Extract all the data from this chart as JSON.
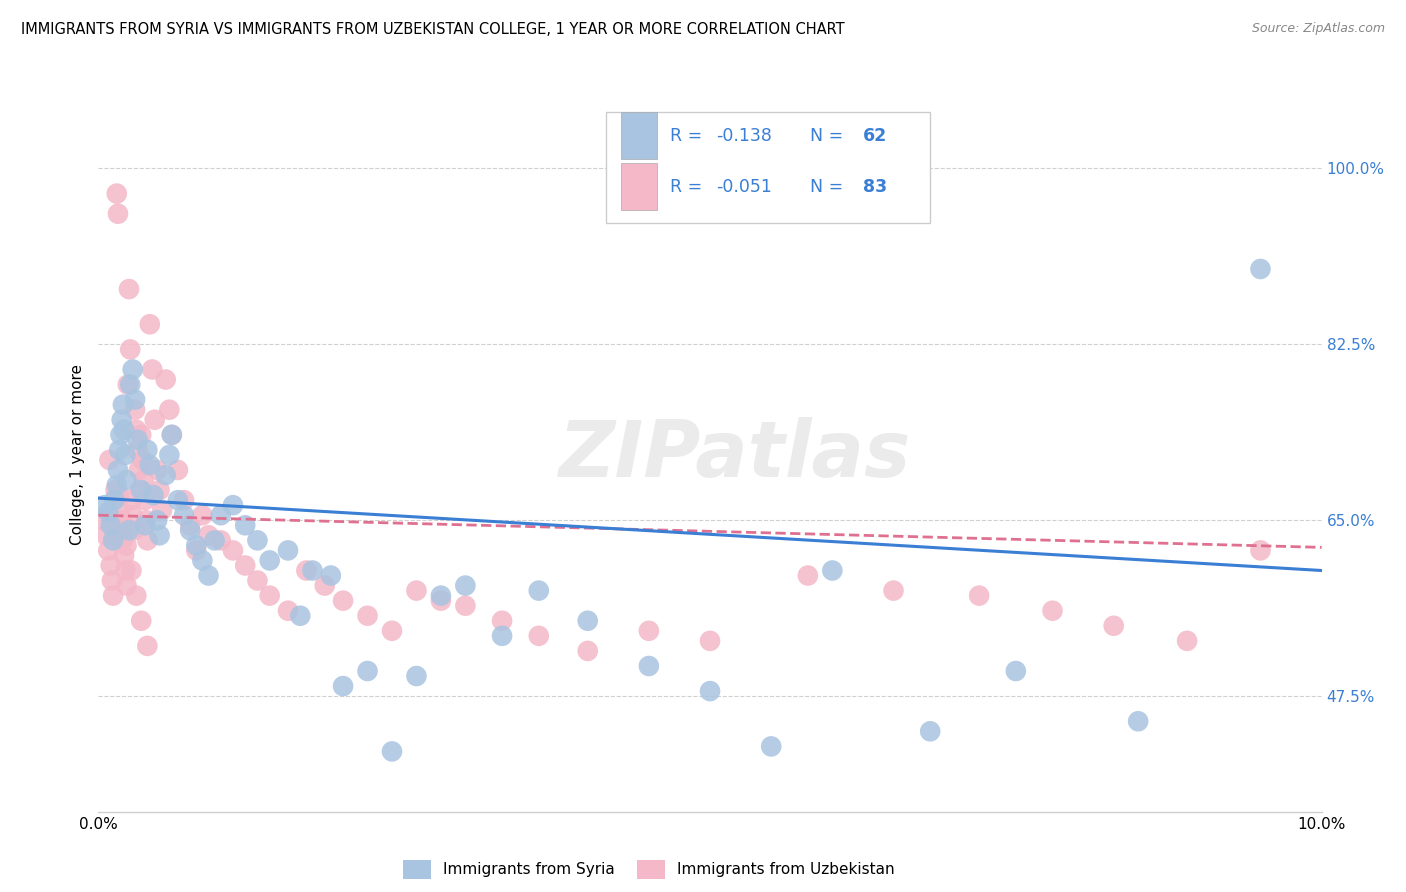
{
  "title": "IMMIGRANTS FROM SYRIA VS IMMIGRANTS FROM UZBEKISTAN COLLEGE, 1 YEAR OR MORE CORRELATION CHART",
  "source": "Source: ZipAtlas.com",
  "ylabel": "College, 1 year or more",
  "ytick_vals": [
    47.5,
    65.0,
    82.5,
    100.0
  ],
  "ytick_labels": [
    "47.5%",
    "65.0%",
    "82.5%",
    "100.0%"
  ],
  "xlim": [
    0.0,
    10.0
  ],
  "ylim": [
    36.0,
    107.0
  ],
  "syria_R": -0.138,
  "syria_N": 62,
  "uzbekistan_R": -0.051,
  "uzbekistan_N": 83,
  "syria_color": "#a8c4e0",
  "uzbekistan_color": "#f4b8c8",
  "syria_line_color": "#3a7fd4",
  "uzbekistan_line_color": "#e07090",
  "legend_text_color": "#3a7fd4",
  "watermark": "ZIPatlas",
  "grid_color": "#d0d0d0",
  "syria_x": [
    0.05,
    0.08,
    0.1,
    0.12,
    0.13,
    0.15,
    0.16,
    0.17,
    0.18,
    0.19,
    0.2,
    0.21,
    0.22,
    0.23,
    0.25,
    0.26,
    0.28,
    0.3,
    0.32,
    0.35,
    0.38,
    0.4,
    0.42,
    0.45,
    0.48,
    0.5,
    0.55,
    0.58,
    0.6,
    0.65,
    0.7,
    0.75,
    0.8,
    0.85,
    0.9,
    0.95,
    1.0,
    1.1,
    1.2,
    1.3,
    1.4,
    1.55,
    1.65,
    1.75,
    1.9,
    2.0,
    2.2,
    2.4,
    2.6,
    2.8,
    3.0,
    3.3,
    3.6,
    4.0,
    4.5,
    5.0,
    5.5,
    6.0,
    6.8,
    7.5,
    8.5,
    9.5
  ],
  "syria_y": [
    66.5,
    65.8,
    64.5,
    63.0,
    67.0,
    68.5,
    70.0,
    72.0,
    73.5,
    75.0,
    76.5,
    74.0,
    71.5,
    69.0,
    64.0,
    78.5,
    80.0,
    77.0,
    73.0,
    68.0,
    64.5,
    72.0,
    70.5,
    67.5,
    65.0,
    63.5,
    69.5,
    71.5,
    73.5,
    67.0,
    65.5,
    64.0,
    62.5,
    61.0,
    59.5,
    63.0,
    65.5,
    66.5,
    64.5,
    63.0,
    61.0,
    62.0,
    55.5,
    60.0,
    59.5,
    48.5,
    50.0,
    42.0,
    49.5,
    57.5,
    58.5,
    53.5,
    58.0,
    55.0,
    50.5,
    48.0,
    42.5,
    60.0,
    44.0,
    50.0,
    45.0,
    90.0
  ],
  "uzbekistan_x": [
    0.04,
    0.06,
    0.08,
    0.1,
    0.11,
    0.12,
    0.13,
    0.14,
    0.15,
    0.16,
    0.17,
    0.18,
    0.19,
    0.2,
    0.21,
    0.22,
    0.23,
    0.24,
    0.25,
    0.26,
    0.27,
    0.28,
    0.29,
    0.3,
    0.31,
    0.32,
    0.33,
    0.34,
    0.35,
    0.36,
    0.37,
    0.38,
    0.39,
    0.4,
    0.42,
    0.44,
    0.46,
    0.48,
    0.5,
    0.52,
    0.55,
    0.58,
    0.6,
    0.65,
    0.7,
    0.75,
    0.8,
    0.85,
    0.9,
    1.0,
    1.1,
    1.2,
    1.3,
    1.4,
    1.55,
    1.7,
    1.85,
    2.0,
    2.2,
    2.4,
    2.6,
    2.8,
    3.0,
    3.3,
    3.6,
    4.0,
    4.5,
    5.0,
    5.8,
    6.5,
    7.2,
    7.8,
    8.3,
    8.9,
    9.5,
    0.09,
    0.14,
    0.19,
    0.23,
    0.27,
    0.31,
    0.35,
    0.4
  ],
  "uzbekistan_y": [
    65.0,
    63.5,
    62.0,
    60.5,
    59.0,
    57.5,
    63.5,
    64.5,
    97.5,
    95.5,
    67.5,
    66.0,
    64.5,
    63.0,
    61.5,
    60.0,
    58.5,
    78.5,
    88.0,
    82.0,
    67.0,
    65.5,
    64.0,
    76.0,
    74.0,
    72.0,
    70.0,
    68.0,
    73.5,
    71.0,
    69.0,
    67.0,
    65.0,
    63.0,
    84.5,
    80.0,
    75.0,
    70.0,
    68.0,
    66.0,
    79.0,
    76.0,
    73.5,
    70.0,
    67.0,
    64.5,
    62.0,
    65.5,
    63.5,
    63.0,
    62.0,
    60.5,
    59.0,
    57.5,
    56.0,
    60.0,
    58.5,
    57.0,
    55.5,
    54.0,
    58.0,
    57.0,
    56.5,
    55.0,
    53.5,
    52.0,
    54.0,
    53.0,
    59.5,
    58.0,
    57.5,
    56.0,
    54.5,
    53.0,
    62.0,
    71.0,
    68.0,
    65.0,
    62.5,
    60.0,
    57.5,
    55.0,
    52.5
  ]
}
